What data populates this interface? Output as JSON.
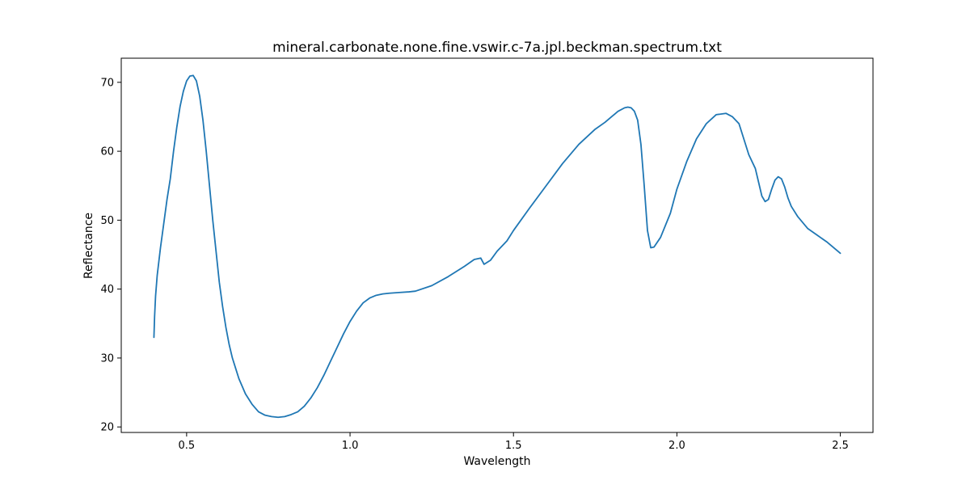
{
  "chart_data": {
    "type": "line",
    "title": "mineral.carbonate.none.fine.vswir.c-7a.jpl.beckman.spectrum.txt",
    "xlabel": "Wavelength",
    "ylabel": "Reflectance",
    "xlim": [
      0.3,
      2.6
    ],
    "ylim": [
      19.2,
      73.5
    ],
    "xticks": [
      0.5,
      1.0,
      1.5,
      2.0,
      2.5
    ],
    "xtick_labels": [
      "0.5",
      "1.0",
      "1.5",
      "2.0",
      "2.5"
    ],
    "yticks": [
      20,
      30,
      40,
      50,
      60,
      70
    ],
    "ytick_labels": [
      "20",
      "30",
      "40",
      "50",
      "60",
      "70"
    ],
    "grid": false,
    "series": [
      {
        "color": "#1f77b4",
        "x": [
          0.4,
          0.402,
          0.405,
          0.41,
          0.42,
          0.43,
          0.44,
          0.45,
          0.46,
          0.47,
          0.48,
          0.49,
          0.5,
          0.51,
          0.52,
          0.53,
          0.54,
          0.55,
          0.56,
          0.57,
          0.58,
          0.59,
          0.6,
          0.61,
          0.62,
          0.63,
          0.64,
          0.65,
          0.66,
          0.68,
          0.7,
          0.72,
          0.74,
          0.76,
          0.78,
          0.8,
          0.82,
          0.84,
          0.86,
          0.88,
          0.9,
          0.92,
          0.94,
          0.96,
          0.98,
          1.0,
          1.02,
          1.04,
          1.06,
          1.08,
          1.1,
          1.12,
          1.15,
          1.18,
          1.2,
          1.25,
          1.3,
          1.35,
          1.38,
          1.4,
          1.41,
          1.43,
          1.45,
          1.48,
          1.5,
          1.55,
          1.6,
          1.65,
          1.7,
          1.75,
          1.78,
          1.8,
          1.82,
          1.84,
          1.85,
          1.86,
          1.87,
          1.88,
          1.89,
          1.9,
          1.91,
          1.92,
          1.93,
          1.95,
          1.98,
          2.0,
          2.03,
          2.06,
          2.09,
          2.12,
          2.15,
          2.17,
          2.19,
          2.2,
          2.22,
          2.24,
          2.25,
          2.26,
          2.27,
          2.28,
          2.29,
          2.3,
          2.31,
          2.32,
          2.33,
          2.34,
          2.35,
          2.37,
          2.4,
          2.43,
          2.46,
          2.5
        ],
        "y": [
          33.0,
          36.0,
          39.0,
          42.0,
          46.0,
          49.5,
          53.0,
          56.0,
          60.0,
          63.5,
          66.5,
          68.7,
          70.2,
          70.9,
          71.0,
          70.2,
          68.0,
          64.5,
          60.0,
          55.0,
          50.0,
          45.5,
          41.0,
          37.5,
          34.5,
          32.0,
          30.0,
          28.5,
          27.0,
          24.8,
          23.3,
          22.2,
          21.7,
          21.5,
          21.4,
          21.5,
          21.8,
          22.2,
          23.0,
          24.2,
          25.7,
          27.5,
          29.5,
          31.5,
          33.5,
          35.3,
          36.8,
          38.0,
          38.7,
          39.1,
          39.3,
          39.4,
          39.5,
          39.6,
          39.7,
          40.5,
          41.8,
          43.3,
          44.3,
          44.5,
          43.6,
          44.2,
          45.5,
          47.0,
          48.5,
          51.8,
          55.0,
          58.2,
          61.0,
          63.2,
          64.2,
          65.0,
          65.8,
          66.3,
          66.4,
          66.3,
          65.8,
          64.5,
          61.0,
          55.0,
          48.5,
          46.0,
          46.1,
          47.5,
          51.0,
          54.5,
          58.5,
          61.8,
          64.0,
          65.3,
          65.5,
          65.0,
          64.0,
          62.5,
          59.5,
          57.5,
          55.5,
          53.5,
          52.7,
          53.0,
          54.5,
          55.8,
          56.3,
          56.0,
          54.8,
          53.2,
          52.0,
          50.5,
          48.8,
          47.8,
          46.8,
          45.2
        ]
      }
    ]
  }
}
